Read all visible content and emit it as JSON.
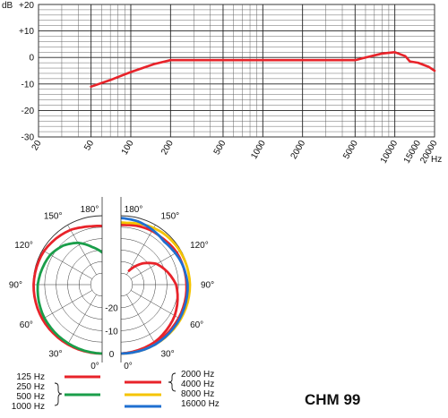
{
  "chart_data": [
    {
      "type": "line",
      "title": "",
      "xscale": "log",
      "xlim": [
        20,
        20000
      ],
      "ylim": [
        -30,
        20
      ],
      "y_unit_label": "dB",
      "x_unit_label": "Hz",
      "grid": true,
      "y_ticks": [
        {
          "value": 20,
          "label": "+20"
        },
        {
          "value": 10,
          "label": "+10"
        },
        {
          "value": 0,
          "label": "0"
        },
        {
          "value": -10,
          "label": "-10"
        },
        {
          "value": -20,
          "label": "-20"
        },
        {
          "value": -30,
          "label": "-30"
        }
      ],
      "x_ticks": [
        {
          "value": 20,
          "label": "20"
        },
        {
          "value": 50,
          "label": "50"
        },
        {
          "value": 100,
          "label": "100"
        },
        {
          "value": 200,
          "label": "200"
        },
        {
          "value": 500,
          "label": "500"
        },
        {
          "value": 1000,
          "label": "1000"
        },
        {
          "value": 2000,
          "label": "2000"
        },
        {
          "value": 5000,
          "label": "5000"
        },
        {
          "value": 10000,
          "label": "10000"
        },
        {
          "value": 15000,
          "label": "15000"
        },
        {
          "value": 20000,
          "label": "20000"
        }
      ],
      "series": [
        {
          "color": "#e8232a",
          "x": [
            50,
            70,
            100,
            150,
            200,
            300,
            500,
            1000,
            2000,
            5000,
            6000,
            8000,
            10000,
            12000,
            13000,
            15000,
            18000,
            20000
          ],
          "y": [
            -11,
            -8.5,
            -5.5,
            -2.5,
            -1,
            -1,
            -1,
            -1,
            -1,
            -1,
            0,
            1.5,
            2,
            0.5,
            -1.5,
            -2,
            -3.5,
            -5
          ]
        }
      ]
    },
    {
      "type": "polar",
      "title": "",
      "rlim": [
        -30,
        0
      ],
      "r_ticks": [
        "-20",
        "-10",
        "0"
      ],
      "angle_labels_left": [
        "180°",
        "150°",
        "120°",
        "90°",
        "60°",
        "30°",
        "0°"
      ],
      "angle_labels_right": [
        "180°",
        "150°",
        "120°",
        "90°",
        "60°",
        "30°",
        "0°"
      ],
      "series": [
        {
          "name": "125 Hz",
          "side": "left",
          "color": "#e8232a",
          "angles": [
            0,
            30,
            60,
            90,
            120,
            150,
            160,
            170,
            180
          ],
          "db": [
            0,
            0,
            0,
            -0.2,
            -0.8,
            -2.5,
            -3.5,
            -4.2,
            -4.5
          ]
        },
        {
          "name": "250 Hz 500 Hz 1000 Hz",
          "side": "left",
          "color": "#1a9e4a",
          "angles": [
            0,
            30,
            60,
            90,
            120,
            135,
            150,
            165,
            180
          ],
          "db": [
            0,
            -0.5,
            -1,
            -2,
            -4,
            -6,
            -9,
            -13,
            -16
          ]
        },
        {
          "name": "2000 Hz",
          "side": "right",
          "color": "#e8232a",
          "angles": [
            0,
            30,
            60,
            90,
            120,
            135,
            150
          ],
          "db": [
            0,
            -1,
            -3,
            -6,
            -12,
            -17,
            -23
          ]
        },
        {
          "name": "4000 Hz",
          "side": "right",
          "color": "#e8232a",
          "angles": [
            0,
            30,
            60,
            90,
            120,
            140,
            150,
            165,
            175,
            180
          ],
          "db": [
            0,
            -0.5,
            -1,
            -1.5,
            -2,
            -3,
            -3,
            -3.5,
            -4,
            -4
          ]
        },
        {
          "name": "8000 Hz",
          "side": "right",
          "color": "#f5c400",
          "angles": [
            0,
            30,
            60,
            90,
            120,
            140,
            155,
            165,
            175,
            180
          ],
          "db": [
            0,
            0,
            0,
            0,
            -0.5,
            -1,
            -1.8,
            -2.5,
            -3,
            -3
          ]
        },
        {
          "name": "16000 Hz",
          "side": "right",
          "color": "#1f6fd0",
          "angles": [
            0,
            30,
            60,
            90,
            110,
            125,
            135,
            150,
            165,
            175,
            180
          ],
          "db": [
            0,
            0,
            -0.5,
            -1,
            -2,
            -3,
            -3.5,
            -2.5,
            -1.5,
            -1.2,
            -1
          ]
        }
      ]
    }
  ],
  "legend": {
    "left": [
      {
        "label": "125 Hz",
        "color": "#e8232a"
      },
      {
        "label": "250 Hz",
        "color": "#1a9e4a"
      },
      {
        "label": "500 Hz",
        "color": "#1a9e4a"
      },
      {
        "label": "1000 Hz",
        "color": "#1a9e4a"
      }
    ],
    "right": [
      {
        "label": "2000 Hz",
        "color": "#e8232a"
      },
      {
        "label": "4000 Hz",
        "color": "#e8232a"
      },
      {
        "label": "8000 Hz",
        "color": "#f5c400"
      },
      {
        "label": "16000 Hz",
        "color": "#1f6fd0"
      }
    ]
  },
  "model_name": "CHM 99"
}
